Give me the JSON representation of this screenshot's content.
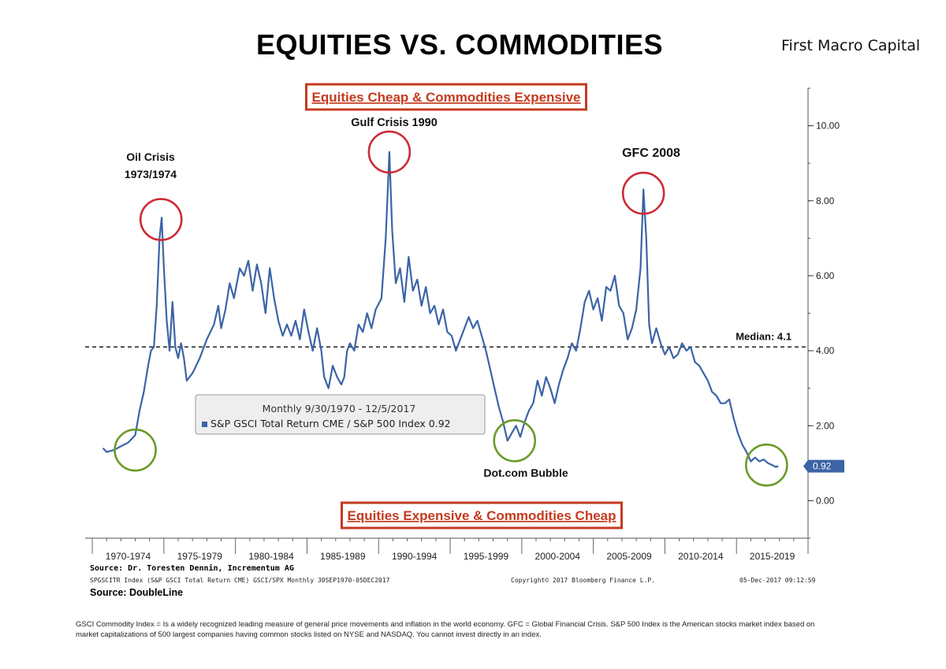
{
  "header": {
    "title": "EQUITIES VS. COMMODITIES",
    "brand": "First Macro Capital"
  },
  "chart_data": {
    "type": "line",
    "title": "EQUITIES VS. COMMODITIES",
    "series": [
      {
        "name": "S&P GSCI Total Return CME / S&P 500 Index",
        "last_value": "0.92",
        "color": "#3c64a6",
        "points": [
          [
            1970.75,
            1.4
          ],
          [
            1971.0,
            1.3
          ],
          [
            1971.5,
            1.35
          ],
          [
            1972.0,
            1.45
          ],
          [
            1972.5,
            1.55
          ],
          [
            1973.0,
            1.75
          ],
          [
            1973.3,
            2.4
          ],
          [
            1973.6,
            2.9
          ],
          [
            1973.9,
            3.6
          ],
          [
            1974.1,
            4.0
          ],
          [
            1974.3,
            4.1
          ],
          [
            1974.5,
            5.2
          ],
          [
            1974.7,
            7.0
          ],
          [
            1974.85,
            7.55
          ],
          [
            1975.0,
            6.2
          ],
          [
            1975.2,
            4.8
          ],
          [
            1975.4,
            4.0
          ],
          [
            1975.6,
            5.3
          ],
          [
            1975.8,
            4.1
          ],
          [
            1976.0,
            3.8
          ],
          [
            1976.2,
            4.2
          ],
          [
            1976.4,
            3.8
          ],
          [
            1976.6,
            3.2
          ],
          [
            1977.0,
            3.4
          ],
          [
            1977.5,
            3.8
          ],
          [
            1978.0,
            4.3
          ],
          [
            1978.5,
            4.7
          ],
          [
            1978.8,
            5.2
          ],
          [
            1979.0,
            4.6
          ],
          [
            1979.3,
            5.1
          ],
          [
            1979.6,
            5.8
          ],
          [
            1979.9,
            5.4
          ],
          [
            1980.3,
            6.2
          ],
          [
            1980.6,
            6.0
          ],
          [
            1980.9,
            6.4
          ],
          [
            1981.2,
            5.6
          ],
          [
            1981.5,
            6.3
          ],
          [
            1981.8,
            5.8
          ],
          [
            1982.1,
            5.0
          ],
          [
            1982.4,
            6.2
          ],
          [
            1982.7,
            5.4
          ],
          [
            1983.0,
            4.8
          ],
          [
            1983.3,
            4.4
          ],
          [
            1983.6,
            4.7
          ],
          [
            1983.9,
            4.4
          ],
          [
            1984.2,
            4.8
          ],
          [
            1984.5,
            4.3
          ],
          [
            1984.8,
            5.1
          ],
          [
            1985.1,
            4.5
          ],
          [
            1985.4,
            4.0
          ],
          [
            1985.7,
            4.6
          ],
          [
            1986.0,
            4.0
          ],
          [
            1986.2,
            3.3
          ],
          [
            1986.5,
            3.0
          ],
          [
            1986.8,
            3.6
          ],
          [
            1987.1,
            3.3
          ],
          [
            1987.4,
            3.1
          ],
          [
            1987.6,
            3.3
          ],
          [
            1987.8,
            4.0
          ],
          [
            1988.0,
            4.2
          ],
          [
            1988.3,
            4.0
          ],
          [
            1988.6,
            4.7
          ],
          [
            1988.9,
            4.5
          ],
          [
            1989.2,
            5.0
          ],
          [
            1989.5,
            4.6
          ],
          [
            1989.8,
            5.1
          ],
          [
            1990.2,
            5.4
          ],
          [
            1990.5,
            7.0
          ],
          [
            1990.75,
            9.3
          ],
          [
            1990.95,
            7.2
          ],
          [
            1991.2,
            5.8
          ],
          [
            1991.5,
            6.2
          ],
          [
            1991.8,
            5.3
          ],
          [
            1992.1,
            6.5
          ],
          [
            1992.4,
            5.6
          ],
          [
            1992.7,
            5.9
          ],
          [
            1993.0,
            5.2
          ],
          [
            1993.3,
            5.7
          ],
          [
            1993.6,
            5.0
          ],
          [
            1993.9,
            5.2
          ],
          [
            1994.2,
            4.7
          ],
          [
            1994.5,
            5.1
          ],
          [
            1994.8,
            4.5
          ],
          [
            1995.1,
            4.4
          ],
          [
            1995.4,
            4.0
          ],
          [
            1995.7,
            4.3
          ],
          [
            1996.0,
            4.6
          ],
          [
            1996.3,
            4.9
          ],
          [
            1996.6,
            4.6
          ],
          [
            1996.9,
            4.8
          ],
          [
            1997.2,
            4.4
          ],
          [
            1997.5,
            4.0
          ],
          [
            1997.8,
            3.5
          ],
          [
            1998.1,
            3.0
          ],
          [
            1998.4,
            2.5
          ],
          [
            1998.7,
            2.1
          ],
          [
            1999.0,
            1.6
          ],
          [
            1999.3,
            1.8
          ],
          [
            1999.6,
            2.0
          ],
          [
            1999.9,
            1.7
          ],
          [
            2000.2,
            2.1
          ],
          [
            2000.5,
            2.4
          ],
          [
            2000.8,
            2.6
          ],
          [
            2001.1,
            3.2
          ],
          [
            2001.4,
            2.8
          ],
          [
            2001.7,
            3.3
          ],
          [
            2002.0,
            3.0
          ],
          [
            2002.3,
            2.6
          ],
          [
            2002.6,
            3.1
          ],
          [
            2002.9,
            3.5
          ],
          [
            2003.2,
            3.8
          ],
          [
            2003.5,
            4.2
          ],
          [
            2003.8,
            4.0
          ],
          [
            2004.1,
            4.6
          ],
          [
            2004.4,
            5.3
          ],
          [
            2004.7,
            5.6
          ],
          [
            2005.0,
            5.1
          ],
          [
            2005.3,
            5.4
          ],
          [
            2005.6,
            4.8
          ],
          [
            2005.9,
            5.7
          ],
          [
            2006.2,
            5.6
          ],
          [
            2006.5,
            6.0
          ],
          [
            2006.8,
            5.2
          ],
          [
            2007.1,
            5.0
          ],
          [
            2007.4,
            4.3
          ],
          [
            2007.7,
            4.6
          ],
          [
            2008.0,
            5.1
          ],
          [
            2008.3,
            6.2
          ],
          [
            2008.5,
            8.3
          ],
          [
            2008.7,
            7.0
          ],
          [
            2008.9,
            4.7
          ],
          [
            2009.1,
            4.2
          ],
          [
            2009.4,
            4.6
          ],
          [
            2009.7,
            4.2
          ],
          [
            2010.0,
            3.9
          ],
          [
            2010.3,
            4.1
          ],
          [
            2010.6,
            3.8
          ],
          [
            2010.9,
            3.9
          ],
          [
            2011.2,
            4.2
          ],
          [
            2011.5,
            4.0
          ],
          [
            2011.8,
            4.1
          ],
          [
            2012.1,
            3.7
          ],
          [
            2012.4,
            3.6
          ],
          [
            2012.7,
            3.4
          ],
          [
            2013.0,
            3.2
          ],
          [
            2013.3,
            2.9
          ],
          [
            2013.6,
            2.8
          ],
          [
            2013.9,
            2.6
          ],
          [
            2014.2,
            2.6
          ],
          [
            2014.5,
            2.7
          ],
          [
            2014.8,
            2.2
          ],
          [
            2015.1,
            1.8
          ],
          [
            2015.4,
            1.5
          ],
          [
            2015.7,
            1.3
          ],
          [
            2016.0,
            1.05
          ],
          [
            2016.3,
            1.15
          ],
          [
            2016.6,
            1.05
          ],
          [
            2016.9,
            1.1
          ],
          [
            2017.2,
            1.0
          ],
          [
            2017.5,
            0.95
          ],
          [
            2017.75,
            0.9
          ],
          [
            2017.92,
            0.92
          ]
        ]
      }
    ],
    "median": {
      "value": 4.1,
      "label": "Median: 4.1"
    },
    "y_axis": {
      "ticks": [
        "0.00",
        "2.00",
        "4.00",
        "6.00",
        "8.00",
        "10.00"
      ],
      "range": [
        -1,
        11
      ],
      "position": "right"
    },
    "x_axis": {
      "range": [
        1969.5,
        2020.0
      ],
      "labels": [
        "1970-1974",
        "1975-1979",
        "1980-1984",
        "1985-1989",
        "1990-1994",
        "1995-1999",
        "2000-2004",
        "2005-2009",
        "2010-2014",
        "2015-2019"
      ]
    },
    "annotations": {
      "top_box": "Equities Cheap & Commodities Expensive",
      "bottom_box": "Equities Expensive & Commodities Cheap",
      "oil_crisis": [
        "Oil Crisis",
        "1973/1974"
      ],
      "gulf_crisis": "Gulf Crisis 1990",
      "gfc": "GFC 2008",
      "dotcom": "Dot.com Bubble"
    },
    "highlights": [
      {
        "label": "Oil Crisis 1973/1974",
        "x": 1974.8,
        "y": 7.5,
        "color": "#cc2b36"
      },
      {
        "label": "Gulf Crisis 1990",
        "x": 1990.75,
        "y": 9.3,
        "color": "#cc2b36"
      },
      {
        "label": "GFC 2008",
        "x": 2008.5,
        "y": 8.2,
        "color": "#cc2b36"
      },
      {
        "label": "1971 low",
        "x": 1973.0,
        "y": 1.35,
        "color": "#6a9b2a"
      },
      {
        "label": "Dot.com Bubble",
        "x": 1999.5,
        "y": 1.6,
        "color": "#6a9b2a"
      },
      {
        "label": "2017 low",
        "x": 2017.1,
        "y": 0.95,
        "color": "#6a9b2a"
      }
    ],
    "legend": {
      "title": "Monthly 9/30/1970 - 12/5/2017",
      "entry": "S&P GSCI Total Return CME / S&P 500 Index 0.92"
    },
    "grid": false
  },
  "sources": {
    "line1": "Source: Dr. Toresten Dennin, Incrementum AG",
    "meta_left": "SPGSCITR Index (S&P GSCI Total Return CME) GSCI/SPX  Monthly 30SEP1970-05DEC2017",
    "meta_mid": "Copyright© 2017 Bloomberg Finance L.P.",
    "meta_right": "05-Dec-2017 09:12:59",
    "line2": "Source: DoubleLine"
  },
  "footnote": "GSCI Commodity Index = Is a widely recognized leading measure of general price movements and inflation in the world economy. GFC = Global Financial Crisis. S&P 500 Index is the American stocks market index based on market capitalizations of 500 largest companies having common stocks listed on NYSE and NASDAQ. You cannot invest directly in an index."
}
